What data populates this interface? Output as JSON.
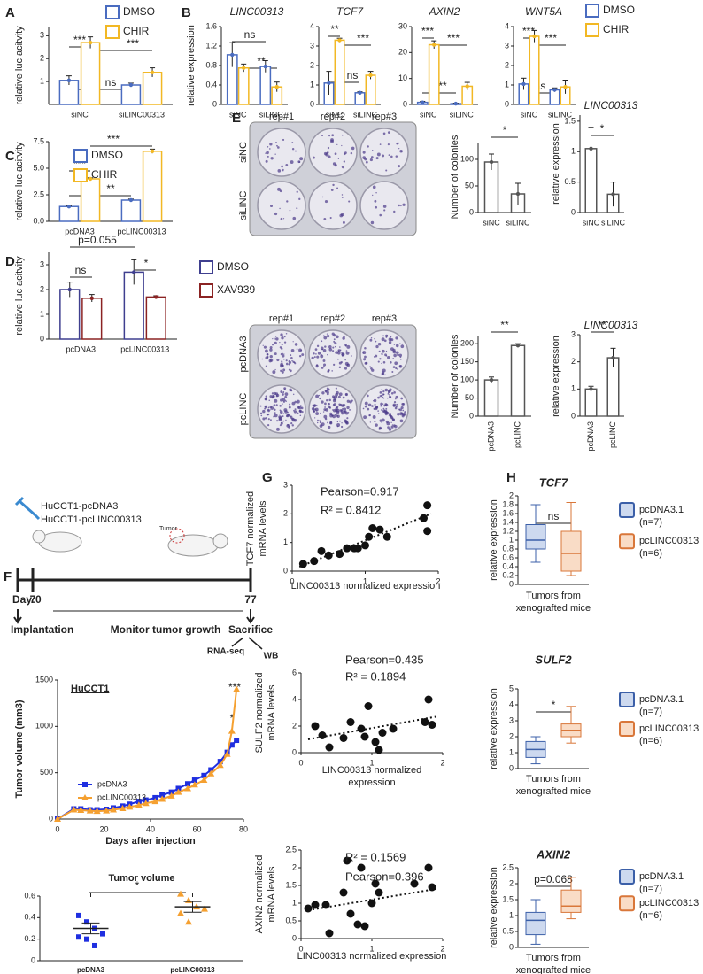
{
  "panel_labels": [
    "A",
    "B",
    "C",
    "D",
    "E",
    "F",
    "G",
    "H"
  ],
  "colony_photos": [
    {
      "columns": [
        "rep#1",
        "rep#2",
        "rep#3"
      ],
      "rows": [
        "siNC",
        "siLINC"
      ]
    },
    {
      "columns": [
        "rep#1",
        "rep#2",
        "rep#3"
      ],
      "rows": [
        "pcDNA3",
        "pcLINC"
      ]
    }
  ],
  "timeline": {
    "groups": [
      "HuCCT1-pcDNA3",
      "HuCCT1-pcLINC00313"
    ],
    "tumor": "Tumor",
    "day_labels": [
      "Day:0",
      "7",
      "77"
    ],
    "stages": [
      "Implantation",
      "Monitor tumor growth",
      "Sacrifice"
    ],
    "outputs": [
      "RNA-seq",
      "WB"
    ]
  },
  "chart_data": [
    {
      "type": "bar",
      "ylabel": "relative luc acitvity",
      "categories": [
        "siNC",
        "siLINC00313"
      ],
      "series": [
        {
          "name": "DMSO",
          "color": "#4a6cc0",
          "values": [
            1.05,
            0.85
          ],
          "errors": [
            0.2,
            0.08
          ]
        },
        {
          "name": "CHIR",
          "color": "#f2b824",
          "values": [
            2.7,
            1.4
          ],
          "errors": [
            0.25,
            0.2
          ]
        }
      ],
      "ylim": [
        0,
        3.4
      ],
      "yticks": [
        1,
        2,
        3
      ],
      "legend": true,
      "annotations": [
        "***",
        "ns",
        "***"
      ]
    },
    {
      "type": "bar",
      "title": "LINC00313",
      "ylabel": "relative expression",
      "categories": [
        "siNC",
        "siLINC"
      ],
      "series": [
        {
          "color": "#4a6cc0",
          "values": [
            1.02,
            0.78
          ],
          "errors": [
            0.25,
            0.12
          ]
        },
        {
          "color": "#f2b824",
          "values": [
            0.75,
            0.36
          ],
          "errors": [
            0.08,
            0.1
          ]
        }
      ],
      "ylim": [
        0,
        1.6
      ],
      "yticks": [
        0,
        0.4,
        0.8,
        1.2,
        1.6
      ],
      "legend": false,
      "annotations": [
        "ns",
        "**"
      ]
    },
    {
      "type": "bar",
      "title": "TCF7",
      "categories": [
        "siNC",
        "siLINC"
      ],
      "series": [
        {
          "color": "#4a6cc0",
          "values": [
            1.1,
            0.6
          ],
          "errors": [
            0.6,
            0.05
          ]
        },
        {
          "color": "#f2b824",
          "values": [
            3.3,
            1.5
          ],
          "errors": [
            0.1,
            0.2
          ]
        }
      ],
      "ylim": [
        0,
        4
      ],
      "yticks": [
        0,
        1,
        2,
        3,
        4
      ],
      "legend": false,
      "annotations": [
        "**",
        "***",
        "ns"
      ]
    },
    {
      "type": "bar",
      "title": "AXIN2",
      "categories": [
        "siNC",
        "siLINC"
      ],
      "series": [
        {
          "color": "#4a6cc0",
          "values": [
            0.8,
            0.3
          ],
          "errors": [
            0.4,
            0.2
          ]
        },
        {
          "color": "#f2b824",
          "values": [
            23,
            7
          ],
          "errors": [
            1.5,
            1.5
          ]
        }
      ],
      "ylim": [
        0,
        30
      ],
      "yticks": [
        0,
        10,
        20,
        30
      ],
      "legend": false,
      "annotations": [
        "***",
        "***",
        "**"
      ]
    },
    {
      "type": "bar",
      "title": "WNT5A",
      "categories": [
        "siNC",
        "siLINC"
      ],
      "series": [
        {
          "name": "DMSO",
          "color": "#4a6cc0",
          "values": [
            1.05,
            0.75
          ],
          "errors": [
            0.3,
            0.1
          ]
        },
        {
          "name": "CHIR",
          "color": "#f2b824",
          "values": [
            3.5,
            0.9
          ],
          "errors": [
            0.3,
            0.35
          ]
        }
      ],
      "ylim": [
        0,
        4
      ],
      "yticks": [
        0,
        1,
        2,
        3,
        4
      ],
      "legend": true,
      "annotations": [
        "***",
        "***",
        "ns"
      ]
    },
    {
      "type": "bar",
      "ylabel": "relative luc acitvity",
      "categories": [
        "pcDNA3",
        "pcLINC00313"
      ],
      "series": [
        {
          "name": "DMSO",
          "color": "#4a6cc0",
          "values": [
            1.4,
            2.0
          ],
          "errors": [
            0.05,
            0.1
          ]
        },
        {
          "name": "CHIR",
          "color": "#f2b824",
          "values": [
            4.0,
            6.6
          ],
          "errors": [
            0.1,
            0.2
          ]
        }
      ],
      "ylim": [
        0,
        7.5
      ],
      "yticks": [
        {
          "value": 0,
          "label": "0.0"
        },
        2.5,
        {
          "value": 5,
          "label": "5.0"
        },
        7.5
      ],
      "legend": true,
      "annotations": [
        "***",
        "***",
        "**"
      ]
    },
    {
      "type": "bar",
      "ylabel": "relative luc acitvity",
      "categories": [
        "pcDNA3",
        "pcLINC00313"
      ],
      "series": [
        {
          "name": "DMSO",
          "color": "#3f3f8f",
          "values": [
            2.0,
            2.7
          ],
          "errors": [
            0.3,
            0.5
          ]
        },
        {
          "name": "XAV939",
          "color": "#8b2323",
          "values": [
            1.65,
            1.7
          ],
          "errors": [
            0.15,
            0.05
          ]
        }
      ],
      "ylim": [
        0,
        3.5
      ],
      "yticks": [
        0,
        1,
        2,
        3
      ],
      "legend": true,
      "annotations": [
        "p=0.055",
        "ns",
        "*"
      ]
    },
    {
      "type": "bar",
      "ylabel": "Number of colonies",
      "categories": [
        "siNC",
        "siLINC"
      ],
      "series": [
        {
          "color": "#555555",
          "values": [
            95,
            35
          ],
          "errors": [
            15,
            20
          ]
        }
      ],
      "ylim": [
        0,
        130
      ],
      "yticks": [
        0,
        50,
        100
      ],
      "legend": false,
      "annotations": [
        "*"
      ]
    },
    {
      "type": "bar",
      "title": "LINC00313",
      "ylabel": "relative expression",
      "categories": [
        "siNC",
        "siLINC"
      ],
      "series": [
        {
          "color": "#555555",
          "values": [
            1.05,
            0.3
          ],
          "errors": [
            0.35,
            0.2
          ]
        }
      ],
      "ylim": [
        0,
        1.6
      ],
      "yticks": [
        0,
        0.5,
        1,
        1.5
      ],
      "legend": false,
      "annotations": [
        "*"
      ]
    },
    {
      "type": "bar",
      "ylabel": "Number of colonies",
      "categories": [
        "pcDNA3",
        "pcLINC"
      ],
      "series": [
        {
          "color": "#555555",
          "values": [
            100,
            195
          ],
          "errors": [
            8,
            5
          ]
        }
      ],
      "ylim": [
        0,
        220
      ],
      "yticks": [
        0,
        50,
        100,
        150,
        200
      ],
      "legend": false,
      "annotations": [
        "**"
      ]
    },
    {
      "type": "bar",
      "title": "LINC00313",
      "ylabel": "relative expression",
      "categories": [
        "pcDNA3",
        "pcLINC"
      ],
      "series": [
        {
          "color": "#555555",
          "values": [
            1.0,
            2.15
          ],
          "errors": [
            0.1,
            0.35
          ]
        }
      ],
      "ylim": [
        0,
        3
      ],
      "yticks": [
        0,
        1,
        2,
        3
      ],
      "legend": false,
      "annotations": [
        "**"
      ]
    },
    {
      "type": "line",
      "label": "HuCCT1",
      "ylabel": "Tumor volume (mm3)",
      "xlabel": "Days after injection",
      "x": [
        0,
        7,
        10,
        14,
        17,
        21,
        24,
        28,
        31,
        35,
        38,
        42,
        45,
        49,
        52,
        56,
        59,
        63,
        66,
        70,
        73,
        75,
        77
      ],
      "series": [
        {
          "name": "pcDNA3",
          "color": "#1f2fe0",
          "marker": "square",
          "values": [
            0,
            110,
            110,
            100,
            100,
            105,
            120,
            140,
            160,
            190,
            205,
            230,
            260,
            290,
            330,
            380,
            420,
            470,
            530,
            620,
            720,
            800,
            850
          ]
        },
        {
          "name": "pcLINC00313",
          "color": "#f5a030",
          "marker": "triangle",
          "values": [
            0,
            100,
            95,
            90,
            85,
            90,
            100,
            115,
            130,
            150,
            170,
            190,
            215,
            250,
            290,
            330,
            370,
            420,
            490,
            580,
            700,
            950,
            1400
          ]
        }
      ],
      "xlim": [
        0,
        80
      ],
      "xticks": [
        0,
        20,
        40,
        60,
        80
      ],
      "ylim": [
        0,
        1500
      ],
      "yticks": [
        0,
        500,
        1000,
        1500
      ],
      "legend": true,
      "annotations": [
        "***",
        "*"
      ]
    },
    {
      "type": "strip",
      "title": "Tumor volume",
      "groups": [
        {
          "name": "pcDNA3",
          "color": "#1f2fe0",
          "marker": "square",
          "values": [
            0.42,
            0.36,
            0.3,
            0.25,
            0.22,
            0.2,
            0.14
          ],
          "mean": 0.3,
          "error": 0.05
        },
        {
          "name": "pcLINC00313",
          "color": "#f5a030",
          "marker": "triangle",
          "values": [
            0.62,
            0.56,
            0.5,
            0.48,
            0.44,
            0.36
          ],
          "mean": 0.5,
          "error": 0.05
        }
      ],
      "ylim": [
        0,
        0.6
      ],
      "yticks": [
        0,
        0.2,
        0.4,
        0.6
      ],
      "annotations": [
        "*"
      ]
    },
    {
      "type": "scatter",
      "ylabel": [
        "TCF7 normalized",
        "mRNA levels"
      ],
      "xlabel": [
        "LINC00313 normalized expression"
      ],
      "pearson": "Pearson=0.917",
      "r_squared": "R² = 0.8412",
      "x": [
        0.15,
        0.3,
        0.4,
        0.5,
        0.65,
        0.75,
        0.85,
        0.9,
        1.0,
        1.05,
        1.1,
        1.2,
        1.3,
        1.8,
        1.85,
        1.85
      ],
      "y": [
        0.25,
        0.35,
        0.7,
        0.55,
        0.6,
        0.8,
        0.8,
        0.8,
        0.9,
        1.2,
        1.5,
        1.45,
        1.2,
        1.85,
        2.3,
        1.4
      ],
      "trend_x": [
        0.1,
        1.9
      ],
      "trend_y": [
        0.15,
        2.0
      ],
      "xlim": [
        0,
        2
      ],
      "xticks": [
        0,
        1,
        2
      ],
      "ylim": [
        0,
        3
      ],
      "yticks": [
        0,
        1,
        2,
        3
      ]
    },
    {
      "type": "scatter",
      "ylabel": [
        "SULF2 normalized",
        "mRNA levels"
      ],
      "xlabel": [
        "LINC00313 normalized",
        "expression"
      ],
      "pearson": "Pearson=0.435",
      "r_squared": "R² = 0.1894",
      "x": [
        0.2,
        0.3,
        0.4,
        0.6,
        0.7,
        0.85,
        0.9,
        0.95,
        1.05,
        1.1,
        1.15,
        1.3,
        1.75,
        1.8,
        1.85
      ],
      "y": [
        2.0,
        1.3,
        0.4,
        1.1,
        2.3,
        1.8,
        1.2,
        3.5,
        0.8,
        0.2,
        1.5,
        1.8,
        2.3,
        4.0,
        2.1
      ],
      "trend_x": [
        0.1,
        1.9
      ],
      "trend_y": [
        1.0,
        2.7
      ],
      "xlim": [
        0,
        2
      ],
      "xticks": [
        0,
        1,
        2
      ],
      "ylim": [
        0,
        6
      ],
      "yticks": [
        0,
        2,
        4,
        6
      ]
    },
    {
      "type": "scatter",
      "ylabel": [
        "AXIN2 normalized",
        "mRNA levels"
      ],
      "xlabel": [
        "LINC00313 normalized expression"
      ],
      "pearson": "Pearson=0.396",
      "r_squared": "R² = 0.1569",
      "x": [
        0.1,
        0.2,
        0.35,
        0.4,
        0.6,
        0.65,
        0.7,
        0.8,
        0.9,
        0.85,
        1.0,
        1.1,
        1.05,
        1.6,
        1.8,
        1.85
      ],
      "y": [
        0.85,
        0.95,
        0.95,
        0.15,
        1.3,
        2.2,
        0.7,
        0.4,
        0.35,
        2.0,
        1.0,
        1.3,
        1.55,
        1.55,
        2.0,
        1.45
      ],
      "trend_x": [
        0.1,
        1.9
      ],
      "trend_y": [
        0.8,
        1.4
      ],
      "xlim": [
        0,
        2
      ],
      "xticks": [
        0,
        1,
        2
      ],
      "ylim": [
        0,
        2.5
      ],
      "yticks": [
        0,
        0.5,
        1,
        1.5,
        2,
        2.5
      ]
    },
    {
      "type": "box",
      "title": "TCF7",
      "ylabel": "relative expression",
      "xlabel": [
        "Tumors from",
        "xenografted mice"
      ],
      "series": [
        {
          "name": "pcDNA3.1",
          "n_label": "(n=7)",
          "color": "#3b5fa8",
          "fill": "#cdd9ef",
          "min": 0.5,
          "q1": 0.8,
          "median": 1.0,
          "q3": 1.35,
          "max": 1.8
        },
        {
          "name": "pcLINC00313",
          "n_label": "(n=6)",
          "color": "#d9773a",
          "fill": "#f9dcc6",
          "min": 0.2,
          "q1": 0.3,
          "median": 0.7,
          "q3": 1.2,
          "max": 1.85
        }
      ],
      "ylim": [
        0,
        2
      ],
      "yticks": [
        0,
        0.2,
        0.4,
        0.6,
        0.8,
        1,
        1.2,
        1.4,
        1.6,
        1.8,
        2
      ],
      "legend": true,
      "annotations": [
        "ns"
      ]
    },
    {
      "type": "box",
      "title": "SULF2",
      "ylabel": "relative expression",
      "xlabel": [
        "Tumors from",
        "xenografted mice"
      ],
      "series": [
        {
          "name": "pcDNA3.1",
          "n_label": "(n=7)",
          "color": "#3b5fa8",
          "fill": "#cdd9ef",
          "min": 0.3,
          "q1": 0.7,
          "median": 1.2,
          "q3": 1.7,
          "max": 2.0
        },
        {
          "name": "pcLINC00313",
          "n_label": "(n=6)",
          "color": "#d9773a",
          "fill": "#f9dcc6",
          "min": 1.6,
          "q1": 2.0,
          "median": 2.4,
          "q3": 2.8,
          "max": 3.9
        }
      ],
      "ylim": [
        0,
        5
      ],
      "yticks": [
        0,
        1,
        2,
        3,
        4,
        5
      ],
      "legend": true,
      "annotations": [
        "*"
      ]
    },
    {
      "type": "box",
      "title": "AXIN2",
      "ylabel": "relative expression",
      "xlabel": [
        "Tumors from",
        "xenografted mice"
      ],
      "series": [
        {
          "name": "pcDNA3.1",
          "n_label": "(n=7)",
          "color": "#3b5fa8",
          "fill": "#cdd9ef",
          "min": 0.1,
          "q1": 0.4,
          "median": 0.85,
          "q3": 1.1,
          "max": 1.5
        },
        {
          "name": "pcLINC00313",
          "n_label": "(n=6)",
          "color": "#d9773a",
          "fill": "#f9dcc6",
          "min": 0.9,
          "q1": 1.1,
          "median": 1.3,
          "q3": 1.8,
          "max": 2.2
        }
      ],
      "ylim": [
        0,
        2.5
      ],
      "yticks": [
        0,
        0.5,
        1,
        1.5,
        2,
        2.5
      ],
      "legend": true,
      "annotations": [
        "p=0.068"
      ]
    }
  ]
}
